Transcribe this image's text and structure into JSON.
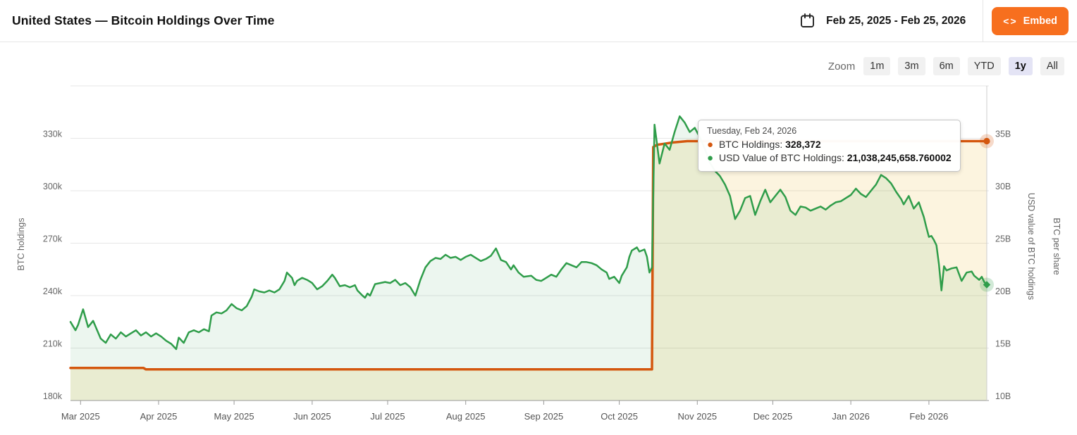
{
  "header": {
    "title": "United States — Bitcoin Holdings Over Time",
    "date_range": "Feb 25, 2025 - Feb 25, 2026",
    "embed_label": "Embed",
    "embed_icon": "<>",
    "accent_color": "#f76f1e"
  },
  "toolbar": {
    "zoom_label": "Zoom",
    "buttons": [
      "1m",
      "3m",
      "6m",
      "YTD",
      "1y",
      "All"
    ],
    "selected": "1y"
  },
  "tooltip": {
    "date": "Tuesday, Feb 24, 2026",
    "rows": [
      {
        "label": "BTC Holdings:",
        "value": "328,372",
        "color": "#d4570e"
      },
      {
        "label": "USD Value of BTC Holdings:",
        "value": "21,038,245,658.760002",
        "color": "#2f9d4a"
      }
    ]
  },
  "chart_data": {
    "type": "line",
    "title": "United States — Bitcoin Holdings Over Time",
    "x_axis": {
      "start": "Feb 25, 2025",
      "end": "Feb 25, 2026",
      "unit": "days from start",
      "ticks": [
        {
          "label": "Mar 2025",
          "day": 4
        },
        {
          "label": "Apr 2025",
          "day": 35
        },
        {
          "label": "May 2025",
          "day": 65
        },
        {
          "label": "Jun 2025",
          "day": 96
        },
        {
          "label": "Jul 2025",
          "day": 126
        },
        {
          "label": "Aug 2025",
          "day": 157
        },
        {
          "label": "Sep 2025",
          "day": 188
        },
        {
          "label": "Oct 2025",
          "day": 218
        },
        {
          "label": "Nov 2025",
          "day": 249
        },
        {
          "label": "Dec 2025",
          "day": 279
        },
        {
          "label": "Jan 2026",
          "day": 310
        },
        {
          "label": "Feb 2026",
          "day": 341
        }
      ]
    },
    "y_axis_left": {
      "title": "BTC holdings",
      "unit": "BTC (thousands)",
      "ticks": [
        {
          "label": "330k",
          "value": 330
        },
        {
          "label": "300k",
          "value": 300
        },
        {
          "label": "270k",
          "value": 270
        },
        {
          "label": "240k",
          "value": 240
        },
        {
          "label": "210k",
          "value": 210
        },
        {
          "label": "180k",
          "value": 180
        }
      ],
      "grid_values": [
        360,
        330,
        300,
        270,
        240,
        210
      ],
      "min": 180,
      "max": 360
    },
    "y_axis_right": {
      "title": "USD value of BTC holdings",
      "title2": "BTC per share",
      "unit": "USD (billions)",
      "ticks": [
        {
          "label": "35B",
          "value": 35
        },
        {
          "label": "30B",
          "value": 30
        },
        {
          "label": "25B",
          "value": 25
        },
        {
          "label": "20B",
          "value": 20
        },
        {
          "label": "15B",
          "value": 15
        },
        {
          "label": "10B",
          "value": 10
        }
      ],
      "min": 10,
      "max": 40
    },
    "series": [
      {
        "name": "BTC Holdings",
        "axis": "left",
        "color": "#d4570e",
        "fill": "rgba(232,174,30,0.14)",
        "line_width": 3.5,
        "marker": "circle",
        "end_value_label": "328,372",
        "points": [
          [
            0,
            198.6
          ],
          [
            29,
            198.6
          ],
          [
            30,
            197.8
          ],
          [
            231,
            197.8
          ],
          [
            231.5,
            325.0
          ],
          [
            233,
            326.3
          ],
          [
            236,
            326.9
          ],
          [
            239,
            327.6
          ],
          [
            242,
            328.0
          ],
          [
            245,
            328.37
          ],
          [
            364,
            328.37
          ]
        ]
      },
      {
        "name": "USD Value of BTC Holdings",
        "axis": "right",
        "color": "#2f9d4a",
        "fill": "rgba(47,157,74,0.09)",
        "line_width": 2.5,
        "marker": "diamond",
        "end_value_label": "21,038,245,658.760002",
        "points": [
          [
            0,
            17.5
          ],
          [
            2,
            16.7
          ],
          [
            3,
            17.2
          ],
          [
            5,
            18.7
          ],
          [
            7,
            17.0
          ],
          [
            9,
            17.6
          ],
          [
            12,
            15.9
          ],
          [
            14,
            15.5
          ],
          [
            16,
            16.3
          ],
          [
            18,
            15.9
          ],
          [
            20,
            16.5
          ],
          [
            22,
            16.1
          ],
          [
            24,
            16.4
          ],
          [
            26,
            16.7
          ],
          [
            28,
            16.2
          ],
          [
            30,
            16.5
          ],
          [
            32,
            16.1
          ],
          [
            34,
            16.4
          ],
          [
            36,
            16.1
          ],
          [
            38,
            15.7
          ],
          [
            40,
            15.4
          ],
          [
            42,
            14.9
          ],
          [
            43,
            16.0
          ],
          [
            45,
            15.5
          ],
          [
            47,
            16.5
          ],
          [
            49,
            16.7
          ],
          [
            51,
            16.5
          ],
          [
            53,
            16.8
          ],
          [
            55,
            16.6
          ],
          [
            56,
            18.1
          ],
          [
            58,
            18.4
          ],
          [
            60,
            18.3
          ],
          [
            62,
            18.6
          ],
          [
            64,
            19.2
          ],
          [
            66,
            18.8
          ],
          [
            68,
            18.6
          ],
          [
            70,
            19.0
          ],
          [
            72,
            19.9
          ],
          [
            73,
            20.6
          ],
          [
            75,
            20.4
          ],
          [
            77,
            20.3
          ],
          [
            79,
            20.5
          ],
          [
            81,
            20.3
          ],
          [
            83,
            20.6
          ],
          [
            85,
            21.4
          ],
          [
            86,
            22.2
          ],
          [
            88,
            21.7
          ],
          [
            89,
            21.0
          ],
          [
            90,
            21.4
          ],
          [
            92,
            21.7
          ],
          [
            94,
            21.5
          ],
          [
            96,
            21.2
          ],
          [
            98,
            20.6
          ],
          [
            100,
            20.9
          ],
          [
            102,
            21.4
          ],
          [
            104,
            22.0
          ],
          [
            105,
            21.7
          ],
          [
            107,
            20.9
          ],
          [
            109,
            21.0
          ],
          [
            111,
            20.8
          ],
          [
            113,
            21.0
          ],
          [
            114,
            20.5
          ],
          [
            116,
            20.0
          ],
          [
            117,
            19.8
          ],
          [
            118,
            20.2
          ],
          [
            119,
            20.0
          ],
          [
            121,
            21.1
          ],
          [
            123,
            21.2
          ],
          [
            125,
            21.3
          ],
          [
            127,
            21.2
          ],
          [
            129,
            21.5
          ],
          [
            131,
            21.0
          ],
          [
            133,
            21.2
          ],
          [
            135,
            20.8
          ],
          [
            137,
            20.0
          ],
          [
            139,
            21.5
          ],
          [
            141,
            22.7
          ],
          [
            143,
            23.3
          ],
          [
            145,
            23.6
          ],
          [
            147,
            23.5
          ],
          [
            149,
            23.9
          ],
          [
            151,
            23.6
          ],
          [
            153,
            23.7
          ],
          [
            155,
            23.4
          ],
          [
            157,
            23.7
          ],
          [
            159,
            23.9
          ],
          [
            161,
            23.6
          ],
          [
            163,
            23.3
          ],
          [
            165,
            23.5
          ],
          [
            167,
            23.8
          ],
          [
            169,
            24.5
          ],
          [
            171,
            23.4
          ],
          [
            173,
            23.2
          ],
          [
            175,
            22.5
          ],
          [
            176,
            22.9
          ],
          [
            178,
            22.2
          ],
          [
            180,
            21.8
          ],
          [
            183,
            21.9
          ],
          [
            185,
            21.5
          ],
          [
            187,
            21.4
          ],
          [
            189,
            21.7
          ],
          [
            191,
            22.0
          ],
          [
            193,
            21.8
          ],
          [
            195,
            22.5
          ],
          [
            197,
            23.1
          ],
          [
            199,
            22.9
          ],
          [
            201,
            22.7
          ],
          [
            203,
            23.2
          ],
          [
            205,
            23.2
          ],
          [
            207,
            23.1
          ],
          [
            209,
            22.9
          ],
          [
            211,
            22.5
          ],
          [
            213,
            22.2
          ],
          [
            214,
            21.6
          ],
          [
            216,
            21.8
          ],
          [
            218,
            21.2
          ],
          [
            219,
            21.9
          ],
          [
            221,
            22.7
          ],
          [
            222,
            23.7
          ],
          [
            223,
            24.3
          ],
          [
            225,
            24.6
          ],
          [
            226,
            24.2
          ],
          [
            228,
            24.4
          ],
          [
            229,
            23.7
          ],
          [
            230,
            22.2
          ],
          [
            231,
            22.7
          ],
          [
            232,
            36.3
          ],
          [
            234,
            32.6
          ],
          [
            236,
            34.5
          ],
          [
            238,
            33.9
          ],
          [
            240,
            35.6
          ],
          [
            242,
            37.1
          ],
          [
            244,
            36.5
          ],
          [
            246,
            35.6
          ],
          [
            248,
            36.0
          ],
          [
            250,
            35.1
          ],
          [
            252,
            34.0
          ],
          [
            254,
            32.7
          ],
          [
            256,
            31.9
          ],
          [
            258,
            31.4
          ],
          [
            260,
            30.6
          ],
          [
            262,
            29.5
          ],
          [
            264,
            27.3
          ],
          [
            266,
            28.1
          ],
          [
            268,
            29.3
          ],
          [
            270,
            29.5
          ],
          [
            272,
            27.7
          ],
          [
            274,
            29.0
          ],
          [
            276,
            30.1
          ],
          [
            278,
            28.9
          ],
          [
            280,
            29.5
          ],
          [
            282,
            30.1
          ],
          [
            284,
            29.4
          ],
          [
            286,
            28.1
          ],
          [
            288,
            27.7
          ],
          [
            290,
            28.5
          ],
          [
            292,
            28.4
          ],
          [
            294,
            28.1
          ],
          [
            296,
            28.3
          ],
          [
            298,
            28.5
          ],
          [
            300,
            28.2
          ],
          [
            302,
            28.6
          ],
          [
            304,
            28.9
          ],
          [
            306,
            29.0
          ],
          [
            308,
            29.3
          ],
          [
            310,
            29.6
          ],
          [
            312,
            30.2
          ],
          [
            314,
            29.7
          ],
          [
            316,
            29.4
          ],
          [
            318,
            30.0
          ],
          [
            320,
            30.6
          ],
          [
            322,
            31.5
          ],
          [
            324,
            31.2
          ],
          [
            326,
            30.7
          ],
          [
            328,
            29.9
          ],
          [
            330,
            29.2
          ],
          [
            331,
            28.7
          ],
          [
            333,
            29.5
          ],
          [
            335,
            28.3
          ],
          [
            337,
            28.9
          ],
          [
            338,
            28.2
          ],
          [
            339,
            27.5
          ],
          [
            340,
            26.5
          ],
          [
            341,
            25.6
          ],
          [
            342,
            25.7
          ],
          [
            343,
            25.3
          ],
          [
            344,
            24.8
          ],
          [
            345,
            23.0
          ],
          [
            346,
            20.5
          ],
          [
            347,
            22.8
          ],
          [
            348,
            22.4
          ],
          [
            350,
            22.6
          ],
          [
            352,
            22.7
          ],
          [
            354,
            21.4
          ],
          [
            356,
            22.2
          ],
          [
            358,
            22.3
          ],
          [
            359,
            21.9
          ],
          [
            361,
            21.5
          ],
          [
            362,
            21.8
          ],
          [
            363,
            21.3
          ],
          [
            364,
            21.04
          ]
        ]
      }
    ],
    "crosshair_day": 364,
    "grid_color": "#e6e6e6",
    "axis_line_color": "#999999",
    "legend_position": "none"
  }
}
